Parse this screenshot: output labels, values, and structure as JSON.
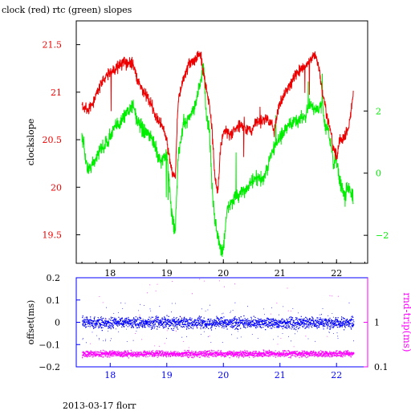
{
  "title": "clock (red) rtc (green) slopes",
  "footer": "2013-03-17 florr",
  "colors": {
    "clock": "#ee0000",
    "rtc": "#00ee00",
    "offset": "#0000ff",
    "rndtrip": "#ff00ff",
    "frame": "#000000"
  },
  "chart_data": [
    {
      "type": "line",
      "title": "clock (red) rtc (green) slopes",
      "xlabel": "",
      "ylabel": "clockslope",
      "y2label": "",
      "xlim": [
        17.4,
        22.55
      ],
      "ylim": [
        19.2,
        21.75
      ],
      "y2lim": [
        -2.9,
        4.9
      ],
      "x_ticks": [
        "18",
        "19",
        "20",
        "21",
        "22"
      ],
      "y_ticks": [
        "19.5",
        "20",
        "20.5",
        "21",
        "21.5"
      ],
      "y2_ticks": [
        "-2",
        "0",
        "2"
      ],
      "grid": false,
      "series": [
        {
          "name": "clock",
          "axis": "left",
          "x": [
            17.5,
            17.6,
            17.7,
            17.8,
            17.9,
            18.0,
            18.1,
            18.2,
            18.3,
            18.4,
            18.5,
            18.6,
            18.7,
            18.75,
            18.8,
            18.85,
            18.9,
            18.95,
            19.0,
            19.05,
            19.1,
            19.15,
            19.2,
            19.3,
            19.4,
            19.5,
            19.6,
            19.65,
            19.7,
            19.75,
            19.8,
            19.85,
            19.9,
            19.95,
            20.0,
            20.05,
            20.1,
            20.2,
            20.3,
            20.4,
            20.5,
            20.6,
            20.7,
            20.75,
            20.8,
            20.85,
            20.9,
            21.0,
            21.1,
            21.2,
            21.3,
            21.4,
            21.5,
            21.55,
            21.6,
            21.65,
            21.7,
            21.75,
            21.8,
            21.85,
            21.9,
            21.95,
            22.0,
            22.05,
            22.1,
            22.15,
            22.2,
            22.25,
            22.3
          ],
          "values": [
            20.85,
            20.8,
            20.9,
            21.05,
            21.15,
            21.2,
            21.25,
            21.3,
            21.3,
            21.3,
            21.1,
            21.0,
            20.9,
            20.85,
            20.75,
            20.7,
            20.65,
            20.6,
            20.5,
            20.3,
            20.15,
            20.1,
            20.9,
            21.15,
            21.3,
            21.35,
            21.4,
            21.2,
            21.05,
            20.9,
            20.6,
            20.1,
            19.95,
            20.4,
            20.6,
            20.6,
            20.55,
            20.6,
            20.65,
            20.6,
            20.6,
            20.7,
            20.7,
            20.72,
            20.7,
            20.68,
            20.6,
            20.9,
            21.0,
            21.1,
            21.2,
            21.25,
            21.3,
            21.35,
            21.4,
            21.35,
            21.2,
            21.0,
            20.85,
            20.7,
            20.55,
            20.4,
            20.3,
            20.5,
            20.5,
            20.55,
            20.6,
            20.75,
            21.0
          ]
        },
        {
          "name": "rtc",
          "axis": "right",
          "x": [
            17.5,
            17.6,
            17.7,
            17.8,
            17.9,
            18.0,
            18.1,
            18.2,
            18.3,
            18.4,
            18.5,
            18.6,
            18.7,
            18.75,
            18.8,
            18.85,
            18.9,
            18.95,
            19.0,
            19.05,
            19.1,
            19.15,
            19.2,
            19.3,
            19.4,
            19.5,
            19.6,
            19.65,
            19.7,
            19.75,
            19.8,
            19.85,
            19.9,
            19.95,
            20.0,
            20.05,
            20.1,
            20.2,
            20.3,
            20.4,
            20.5,
            20.6,
            20.7,
            20.75,
            20.8,
            20.85,
            20.9,
            21.0,
            21.1,
            21.2,
            21.3,
            21.4,
            21.5,
            21.55,
            21.6,
            21.65,
            21.7,
            21.75,
            21.8,
            21.85,
            21.9,
            21.95,
            22.0,
            22.05,
            22.1,
            22.15,
            22.2,
            22.25,
            22.3
          ],
          "values": [
            1.2,
            0.1,
            0.3,
            0.7,
            0.9,
            1.2,
            1.5,
            1.7,
            2.0,
            2.2,
            1.6,
            1.3,
            1.2,
            1.1,
            0.8,
            0.5,
            0.4,
            0.5,
            0.6,
            -0.5,
            -1.5,
            -1.8,
            0.5,
            1.6,
            1.8,
            2.2,
            3.0,
            3.4,
            1.8,
            1.5,
            -0.5,
            -1.5,
            -2.0,
            -2.5,
            -2.4,
            -1.5,
            -1.0,
            -0.8,
            -0.7,
            -0.5,
            -0.3,
            -0.2,
            -0.2,
            0.0,
            0.3,
            0.6,
            0.9,
            1.1,
            1.4,
            1.6,
            1.7,
            1.8,
            2.0,
            2.3,
            2.1,
            2.0,
            2.1,
            2.2,
            1.5,
            1.4,
            0.9,
            0.3,
            0.5,
            -0.2,
            -0.5,
            -0.8,
            -0.4,
            -0.6,
            -0.9
          ]
        }
      ]
    },
    {
      "type": "scatter",
      "title": "",
      "xlabel": "",
      "ylabel": "offset(ms)",
      "y2label": "rnd-trip(ms)",
      "xlim": [
        17.4,
        22.55
      ],
      "ylim": [
        -0.2,
        0.2
      ],
      "y2_log_range": [
        0.1,
        10
      ],
      "x_ticks": [
        "18",
        "19",
        "20",
        "21",
        "22"
      ],
      "y_ticks": [
        "-0.2",
        "-0.1",
        "0",
        "0.1",
        "0.2"
      ],
      "y2_ticks": [
        "0.1",
        "1"
      ],
      "grid": false,
      "series": [
        {
          "name": "offset",
          "axis": "left",
          "x_range": [
            17.5,
            22.3
          ],
          "center": 0.0,
          "spread": 0.012,
          "outlier_spread": 0.09
        },
        {
          "name": "rnd-trip",
          "axis": "right",
          "x_range": [
            17.5,
            22.3
          ],
          "center": 0.2,
          "spread_factor": 1.08,
          "outlier_max": 10
        }
      ]
    }
  ]
}
